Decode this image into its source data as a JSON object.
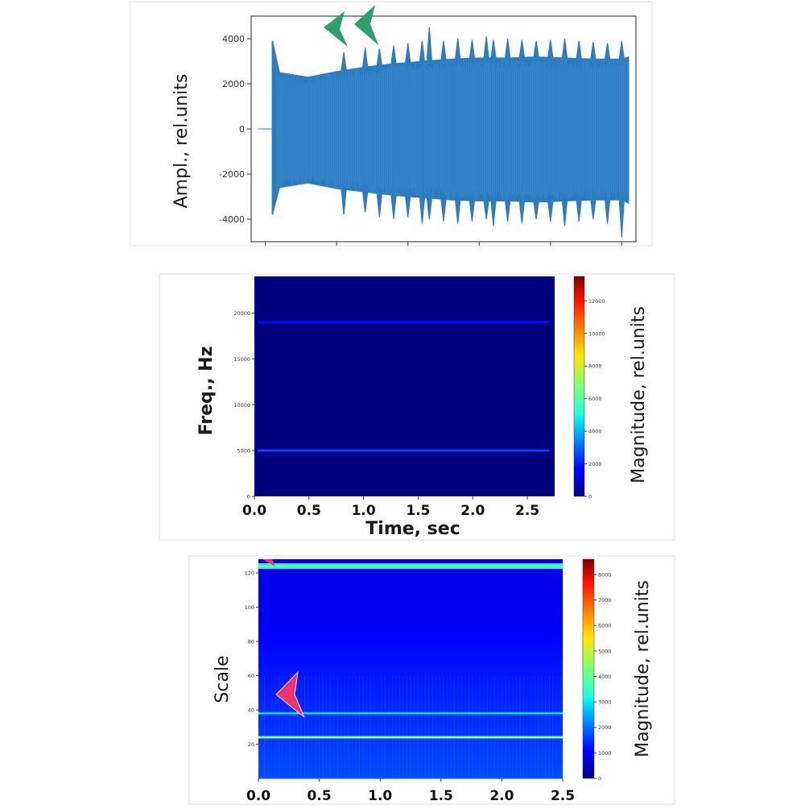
{
  "chart_data": [
    {
      "type": "line",
      "title": "",
      "xlabel": "",
      "ylabel": "Ampl., rel.units",
      "yticks": [
        4000,
        2000,
        0,
        -2000,
        -4000
      ],
      "ylim": [
        -5000,
        5000
      ],
      "xlim": [
        -0.1,
        2.6
      ],
      "signal_start_sec": 0.05,
      "signal_end_sec": 2.55,
      "envelope": {
        "x": [
          0.05,
          0.1,
          0.3,
          0.5,
          0.7,
          0.9,
          1.1,
          1.3,
          1.5,
          1.7,
          1.9,
          2.1,
          2.3,
          2.5,
          2.55
        ],
        "upper": [
          3900,
          2500,
          2300,
          2550,
          2750,
          2900,
          3000,
          3100,
          3150,
          3150,
          3200,
          3150,
          3100,
          3100,
          3200
        ],
        "lower": [
          -3800,
          -2600,
          -2400,
          -2650,
          -2800,
          -2950,
          -3050,
          -3150,
          -3200,
          -3200,
          -3250,
          -3200,
          -3150,
          -3150,
          -3300
        ]
      },
      "peak_spikes": {
        "x": [
          0.55,
          0.7,
          0.8,
          0.9,
          1.0,
          1.1,
          1.15,
          1.25,
          1.35,
          1.45,
          1.55,
          1.6,
          1.7,
          1.8,
          1.9,
          2.0,
          2.1,
          2.2,
          2.3,
          2.4,
          2.5
        ],
        "upper": [
          3400,
          3600,
          3550,
          3700,
          3800,
          3900,
          4500,
          3900,
          4000,
          3950,
          4100,
          3950,
          4000,
          3950,
          3900,
          3950,
          4000,
          3900,
          3850,
          3800,
          3900
        ],
        "lower": [
          -3800,
          -3700,
          -3900,
          -4000,
          -3900,
          -4200,
          -4000,
          -4100,
          -4200,
          -4100,
          -4000,
          -4300,
          -4100,
          -4200,
          -4000,
          -4100,
          -4300,
          -4100,
          -4000,
          -4200,
          -4800
        ]
      },
      "series_color": "#2e7cc0",
      "annotation_color": "#2f9e6e",
      "annotations": [
        "arrow",
        "arrow"
      ]
    },
    {
      "type": "heatmap",
      "title": "",
      "xlabel": "Time, sec",
      "ylabel": "Freq., Hz",
      "colorbar_label": "Magnitude, rel.units",
      "xticks": [
        "0.0",
        "0.5",
        "1.0",
        "1.5",
        "2.0",
        "2.5"
      ],
      "yticks": [
        "20000",
        "15000",
        "10000",
        "5000",
        "0"
      ],
      "ytick_values": [
        20000,
        15000,
        10000,
        5000,
        0
      ],
      "colorbar_ticks": [
        "12000",
        "10000",
        "8000",
        "6000",
        "4000",
        "2000",
        "0"
      ],
      "colorbar_tick_values": [
        12000,
        10000,
        8000,
        6000,
        4000,
        2000,
        0
      ],
      "xlim": [
        0,
        2.75
      ],
      "ylim": [
        0,
        24000
      ],
      "clim": [
        0,
        13500
      ],
      "bands": [
        {
          "freq_hz": 19000,
          "magnitude": 1600
        },
        {
          "freq_hz": 5000,
          "magnitude": 2400
        }
      ],
      "background_magnitude": 200
    },
    {
      "type": "heatmap",
      "title": "",
      "xlabel": "",
      "ylabel": "Scale",
      "colorbar_label": "Magnitude, rel.units",
      "xticks": [
        "0.0",
        "0.5",
        "1.0",
        "1.5",
        "2.0",
        "2.5"
      ],
      "yticks": [
        "120",
        "100",
        "80",
        "60",
        "40",
        "20"
      ],
      "ytick_values": [
        120,
        100,
        80,
        60,
        40,
        20
      ],
      "colorbar_ticks": [
        "8000",
        "7000",
        "6000",
        "5000",
        "4000",
        "3000",
        "2000",
        "1000",
        "0"
      ],
      "colorbar_tick_values": [
        8000,
        7000,
        6000,
        5000,
        4000,
        3000,
        2000,
        1000,
        0
      ],
      "xlim": [
        0,
        2.5
      ],
      "ylim": [
        0,
        128
      ],
      "clim": [
        0,
        8600
      ],
      "bands": [
        {
          "scale": 124,
          "magnitude": 3400
        },
        {
          "scale": 38,
          "magnitude": 2400
        },
        {
          "scale": 24,
          "magnitude": 3800
        }
      ],
      "background_gradient": {
        "scale": [
          0,
          20,
          40,
          60,
          80,
          100,
          126
        ],
        "magnitude": [
          1700,
          1550,
          1400,
          1250,
          1100,
          950,
          850
        ]
      },
      "annotation_color": "#e8366b",
      "annotations": [
        "arrow"
      ]
    }
  ]
}
